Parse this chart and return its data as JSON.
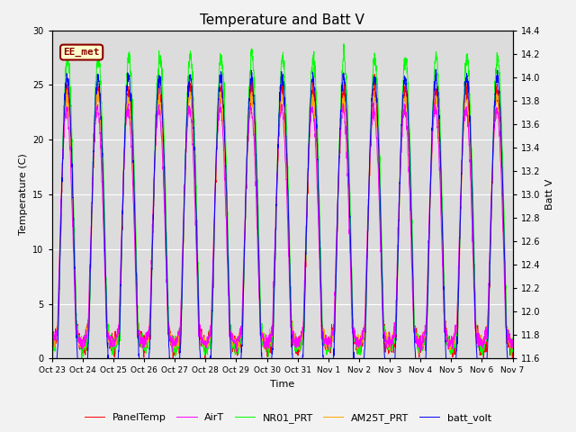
{
  "title": "Temperature and Batt V",
  "ylabel_left": "Temperature (C)",
  "ylabel_right": "Batt V",
  "xlabel": "Time",
  "x_tick_labels": [
    "Oct 23",
    "Oct 24",
    "Oct 25",
    "Oct 26",
    "Oct 27",
    "Oct 28",
    "Oct 29",
    "Oct 30",
    "Oct 31",
    "Nov 1",
    "Nov 2",
    "Nov 3",
    "Nov 4",
    "Nov 5",
    "Nov 6",
    "Nov 7"
  ],
  "ylim_left": [
    0,
    30
  ],
  "ylim_right": [
    11.6,
    14.4
  ],
  "legend_labels": [
    "PanelTemp",
    "AirT",
    "NR01_PRT",
    "AM25T_PRT",
    "batt_volt"
  ],
  "legend_colors": [
    "#FF0000",
    "#FF00FF",
    "#00FF00",
    "#FFA500",
    "#0000FF"
  ],
  "annotation_text": "EE_met",
  "annotation_color": "#8B0000",
  "background_color": "#DCDCDC",
  "grid_color": "#FFFFFF",
  "n_days": 15,
  "seed": 42,
  "temp_night_base": 2.5,
  "temp_day_peak": 24.0,
  "batt_night_min": 11.8,
  "batt_day_max": 14.0
}
